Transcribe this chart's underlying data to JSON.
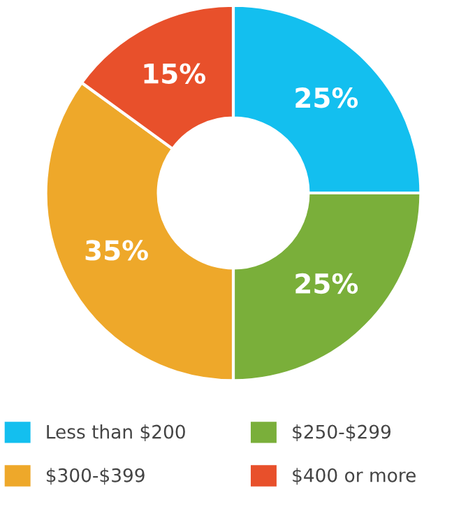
{
  "chart_data": {
    "type": "donut",
    "categories": [
      "Less than $200",
      "$250-$299",
      "$300-$399",
      "$400 or more"
    ],
    "values": [
      25,
      25,
      35,
      15
    ],
    "colors": [
      "#13bfef",
      "#7aaf3a",
      "#eea82a",
      "#e8502b"
    ],
    "value_labels": [
      "25%",
      "25%",
      "35%",
      "15%"
    ],
    "legend": "bottom"
  }
}
